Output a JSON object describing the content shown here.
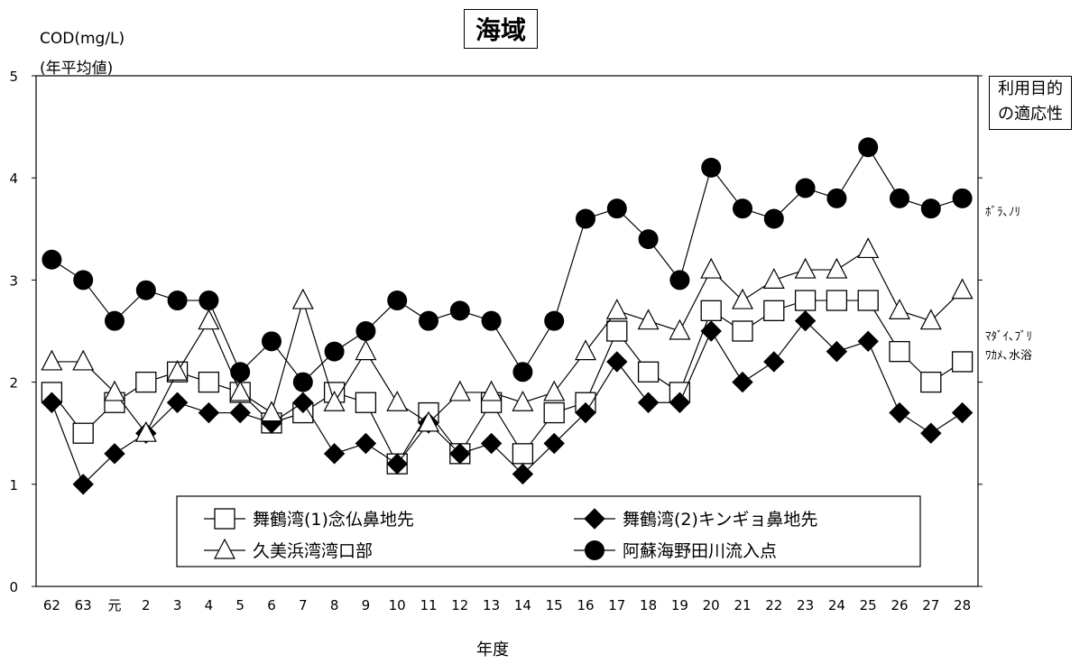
{
  "title": "海域",
  "ylabel_line1": "COD(mg/L)",
  "ylabel_line2": "(年平均値)",
  "xlabel": "年度",
  "right_box_line1": "利用目的",
  "right_box_line2": "の適応性",
  "purpose_1": "ﾎﾞﾗ､ﾉﾘ",
  "purpose_2a": "ﾏﾀﾞｲ､ﾌﾞﾘ",
  "purpose_2b": "ﾜｶﾒ､水浴",
  "chart_data": {
    "type": "line",
    "title": "海域",
    "xlabel": "年度",
    "ylabel": "COD(mg/L) (年平均値)",
    "ylim": [
      0,
      5
    ],
    "yticks": [
      "0",
      "1",
      "2",
      "3",
      "4",
      "5"
    ],
    "categories": [
      "62",
      "63",
      "元",
      "2",
      "3",
      "4",
      "5",
      "6",
      "7",
      "8",
      "9",
      "10",
      "11",
      "12",
      "13",
      "14",
      "15",
      "16",
      "17",
      "18",
      "19",
      "20",
      "21",
      "22",
      "23",
      "24",
      "25",
      "26",
      "27",
      "28"
    ],
    "legend": "bottom-center inside plot",
    "grid": false,
    "series": [
      {
        "name": "舞鶴湾(1)念仏鼻地先",
        "marker": "square-open",
        "values": [
          1.9,
          1.5,
          1.8,
          2.0,
          2.1,
          2.0,
          1.9,
          1.6,
          1.7,
          1.9,
          1.8,
          1.2,
          1.7,
          1.3,
          1.8,
          1.3,
          1.7,
          1.8,
          2.5,
          2.1,
          1.9,
          2.7,
          2.5,
          2.7,
          2.8,
          2.8,
          2.8,
          2.3,
          2.0,
          2.2
        ]
      },
      {
        "name": "舞鶴湾(2)キンギョ鼻地先",
        "marker": "diamond-filled",
        "values": [
          1.8,
          1.0,
          1.3,
          1.5,
          1.8,
          1.7,
          1.7,
          1.6,
          1.8,
          1.3,
          1.4,
          1.2,
          1.6,
          1.3,
          1.4,
          1.1,
          1.4,
          1.7,
          2.2,
          1.8,
          1.8,
          2.5,
          2.0,
          2.2,
          2.6,
          2.3,
          2.4,
          1.7,
          1.5,
          1.7
        ]
      },
      {
        "name": "久美浜湾湾口部",
        "marker": "triangle-open",
        "values": [
          2.2,
          2.2,
          1.9,
          1.5,
          2.1,
          2.6,
          1.9,
          1.7,
          2.8,
          1.8,
          2.3,
          1.8,
          1.6,
          1.9,
          1.9,
          1.8,
          1.9,
          2.3,
          2.7,
          2.6,
          2.5,
          3.1,
          2.8,
          3.0,
          3.1,
          3.1,
          3.3,
          2.7,
          2.6,
          2.9
        ]
      },
      {
        "name": "阿蘇海野田川流入点",
        "marker": "circle-filled",
        "values": [
          3.2,
          3.0,
          2.6,
          2.9,
          2.8,
          2.8,
          2.1,
          2.4,
          2.0,
          2.3,
          2.5,
          2.8,
          2.6,
          2.7,
          2.6,
          2.1,
          2.6,
          3.6,
          3.7,
          3.4,
          3.0,
          4.1,
          3.7,
          3.6,
          3.9,
          3.8,
          4.3,
          3.8,
          3.7,
          3.8
        ]
      }
    ]
  }
}
